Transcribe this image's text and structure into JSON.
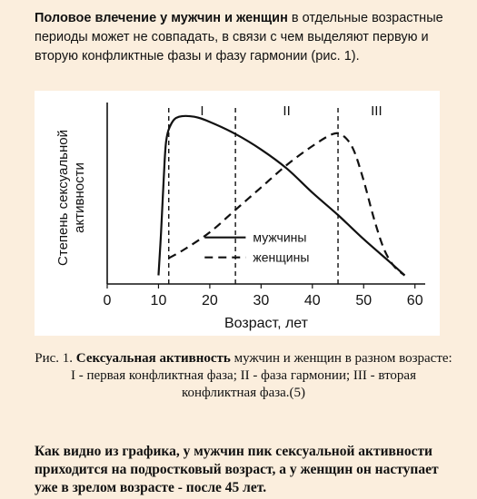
{
  "intro": {
    "bold": "Половое влечение у мужчин и женщин",
    "rest": " в отдельные возрастные периоды может не совпадать, в связи с чем выделяют первую и вторую конфликтные фазы и фазу гармонии (рис. 1)."
  },
  "chart_data": {
    "type": "line",
    "title": "",
    "xlabel": "Возраст, лет",
    "ylabel": "Степень сексуальной активности",
    "xlim": [
      0,
      62
    ],
    "ylim": [
      0,
      100
    ],
    "x_ticks": [
      "0",
      "10",
      "20",
      "30",
      "40",
      "50",
      "60"
    ],
    "grid": false,
    "legend_position": "center-right",
    "phase_boundaries": [
      12,
      25,
      45
    ],
    "phase_labels": [
      "I",
      "II",
      "III"
    ],
    "series": [
      {
        "name": "мужчины",
        "style": "solid",
        "points": [
          [
            10,
            5
          ],
          [
            10.5,
            30
          ],
          [
            11,
            60
          ],
          [
            11.5,
            83
          ],
          [
            12.5,
            93
          ],
          [
            14,
            97
          ],
          [
            17,
            97
          ],
          [
            20,
            94
          ],
          [
            25,
            87
          ],
          [
            30,
            78
          ],
          [
            35,
            67
          ],
          [
            40,
            53
          ],
          [
            45,
            40
          ],
          [
            50,
            26
          ],
          [
            55,
            13
          ],
          [
            58,
            5
          ]
        ]
      },
      {
        "name": "женщины",
        "style": "dashed",
        "points": [
          [
            12,
            15
          ],
          [
            15,
            20
          ],
          [
            20,
            30
          ],
          [
            25,
            43
          ],
          [
            30,
            56
          ],
          [
            35,
            69
          ],
          [
            40,
            80
          ],
          [
            44,
            87
          ],
          [
            46,
            86
          ],
          [
            48,
            78
          ],
          [
            50,
            60
          ],
          [
            52,
            38
          ],
          [
            54,
            20
          ],
          [
            56,
            10
          ],
          [
            58,
            5
          ]
        ]
      }
    ]
  },
  "caption": {
    "prefix": "Рис. 1. ",
    "bold": "Сексуальная активность",
    "line1_rest": " мужчин и женщин в разном возрасте:",
    "line2": "I - первая конфликтная фаза; II - фаза гармонии; III - вторая конфликтная фаза.(5)"
  },
  "conclusion": {
    "text": "Как видно из графика, у мужчин пик сексуальной активности приходится на подростковый возраст, а у женщин он наступает уже в зрелом возрасте - после 45 лет."
  },
  "colors": {
    "background": "#fbeedd",
    "line": "#111111"
  }
}
